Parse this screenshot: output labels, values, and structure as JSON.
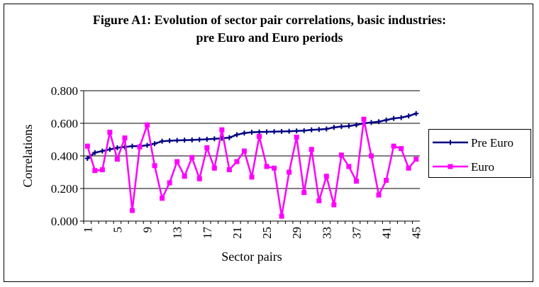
{
  "chart_data": {
    "type": "line",
    "title": "Figure A1: Evolution of sector pair correlations, basic industries:",
    "subtitle": "pre Euro and Euro periods",
    "y_label": "Correlations",
    "x_label": "Sector pairs",
    "categories": [
      "1",
      null,
      null,
      null,
      "5",
      null,
      null,
      null,
      "9",
      null,
      null,
      null,
      "13",
      null,
      null,
      null,
      "17",
      null,
      null,
      null,
      "21",
      null,
      null,
      null,
      "25",
      null,
      null,
      null,
      "29",
      null,
      null,
      null,
      "33",
      null,
      null,
      null,
      "37",
      null,
      null,
      null,
      "41",
      null,
      null,
      null,
      "45"
    ],
    "series": [
      {
        "name": "Pre Euro",
        "color": "#000080",
        "marker": "plus",
        "values": [
          0.385,
          0.42,
          0.43,
          0.44,
          0.45,
          0.455,
          0.46,
          0.46,
          0.465,
          0.475,
          0.49,
          0.493,
          0.495,
          0.497,
          0.498,
          0.5,
          0.502,
          0.505,
          0.508,
          0.512,
          0.53,
          0.54,
          0.545,
          0.547,
          0.548,
          0.549,
          0.55,
          0.551,
          0.553,
          0.555,
          0.56,
          0.562,
          0.565,
          0.575,
          0.58,
          0.583,
          0.59,
          0.6,
          0.605,
          0.61,
          0.62,
          0.63,
          0.635,
          0.645,
          0.66
        ]
      },
      {
        "name": "Euro",
        "color": "#ff00ff",
        "marker": "square",
        "values": [
          0.46,
          0.31,
          0.315,
          0.545,
          0.38,
          0.51,
          0.065,
          0.455,
          0.59,
          0.34,
          0.14,
          0.235,
          0.365,
          0.275,
          0.39,
          0.26,
          0.45,
          0.325,
          0.56,
          0.315,
          0.365,
          0.43,
          0.27,
          0.52,
          0.335,
          0.325,
          0.03,
          0.3,
          0.515,
          0.175,
          0.44,
          0.125,
          0.275,
          0.1,
          0.405,
          0.335,
          0.245,
          0.625,
          0.4,
          0.16,
          0.25,
          0.46,
          0.445,
          0.325,
          0.38
        ]
      }
    ],
    "ylim": [
      0,
      0.8
    ],
    "yticks": [
      {
        "value": 0,
        "label": "0.000"
      },
      {
        "value": 0.2,
        "label": "0.200"
      },
      {
        "value": 0.4,
        "label": "0.400"
      },
      {
        "value": 0.6,
        "label": "0.600"
      },
      {
        "value": 0.8,
        "label": "0.800"
      }
    ],
    "grid": true,
    "legend": "right"
  }
}
